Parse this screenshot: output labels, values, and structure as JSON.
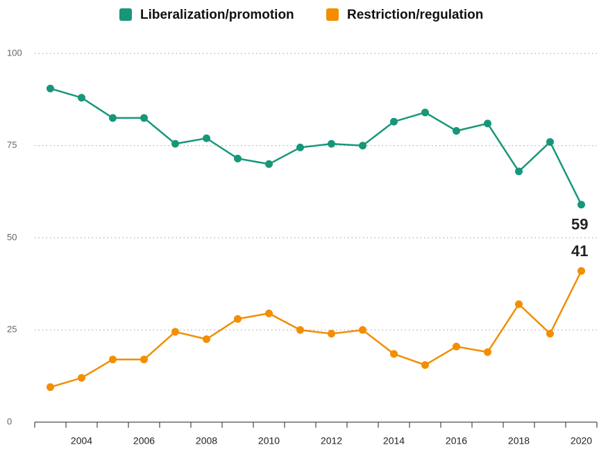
{
  "chart_data": {
    "type": "line",
    "x": [
      2003,
      2004,
      2005,
      2006,
      2007,
      2008,
      2009,
      2010,
      2011,
      2012,
      2013,
      2014,
      2015,
      2016,
      2017,
      2018,
      2019,
      2020
    ],
    "series": [
      {
        "name": "Liberalization/promotion",
        "color": "#17967a",
        "values": [
          90.5,
          88,
          82.5,
          82.5,
          75.5,
          77,
          71.5,
          70,
          74.5,
          75.5,
          75,
          81.5,
          84,
          79,
          81,
          68,
          76,
          59
        ]
      },
      {
        "name": "Restriction/regulation",
        "color": "#f28e00",
        "values": [
          9.5,
          12,
          17,
          17,
          24.5,
          22.5,
          28,
          29.5,
          25,
          24,
          25,
          18.5,
          15.5,
          20.5,
          19,
          32,
          24,
          41
        ]
      }
    ],
    "xlim": [
      2002.5,
      2020.5
    ],
    "xticks": [
      2004,
      2006,
      2008,
      2010,
      2012,
      2014,
      2016,
      2018,
      2020
    ],
    "ylim": [
      0,
      100
    ],
    "yticks": [
      0,
      25,
      50,
      75,
      100
    ],
    "grid": true,
    "legend": "top",
    "end_labels": true
  }
}
